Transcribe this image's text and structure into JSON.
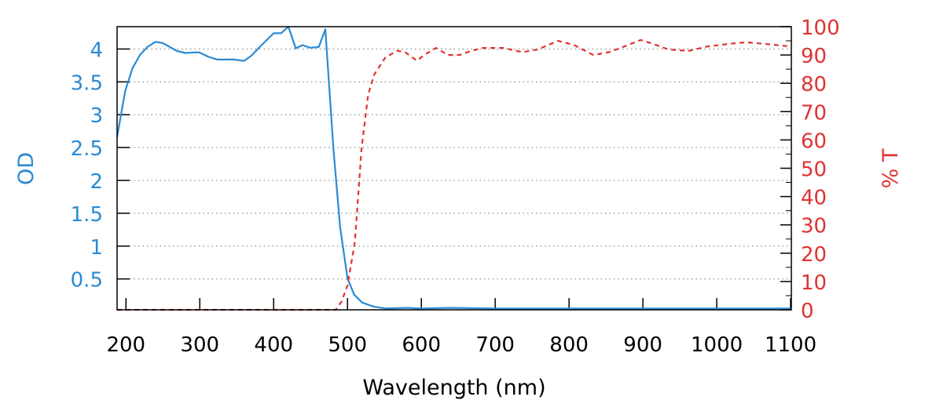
{
  "chart_data": {
    "type": "line",
    "xlabel": "Wavelength (nm)",
    "ylabel_left": "OD",
    "ylabel_right": "% T",
    "xlim": [
      188,
      1101
    ],
    "ylim_left": [
      0.03,
      4.34
    ],
    "ylim_right": [
      0,
      100
    ],
    "x_ticks": [
      200,
      300,
      400,
      500,
      600,
      700,
      800,
      900,
      1000,
      1100
    ],
    "y_left_ticks": [
      0.5,
      1,
      1.5,
      2,
      2.5,
      3,
      3.5,
      4
    ],
    "y_left_tick_labels": [
      "0.5",
      "1",
      "1.5",
      "2",
      "2.5",
      "3",
      "3.5",
      "4"
    ],
    "y_right_ticks": [
      0,
      10,
      20,
      30,
      40,
      50,
      60,
      70,
      80,
      90,
      100
    ],
    "grid": "horizontal dotted at left-axis ticks",
    "colors": {
      "od": "#2a8ad4",
      "t": "#e03232"
    },
    "series": [
      {
        "name": "OD",
        "axis": "left",
        "style": "solid",
        "x": [
          188,
          199,
          209,
          219,
          229,
          240,
          250,
          269,
          280,
          299,
          312,
          324,
          346,
          360,
          370,
          381,
          400,
          410,
          420,
          430,
          439,
          449,
          461,
          470,
          481,
          490,
          500,
          509,
          520,
          535,
          551,
          580,
          600,
          640,
          700,
          760,
          800,
          850,
          900,
          950,
          1000,
          1050,
          1101
        ],
        "y": [
          2.66,
          3.36,
          3.71,
          3.91,
          4.03,
          4.11,
          4.09,
          3.97,
          3.94,
          3.95,
          3.88,
          3.84,
          3.84,
          3.82,
          3.9,
          4.03,
          4.24,
          4.24,
          4.34,
          4.01,
          4.06,
          4.02,
          4.03,
          4.3,
          2.48,
          1.29,
          0.51,
          0.26,
          0.14,
          0.08,
          0.05,
          0.06,
          0.05,
          0.06,
          0.05,
          0.05,
          0.05,
          0.05,
          0.05,
          0.05,
          0.05,
          0.05,
          0.05
        ]
      },
      {
        "name": "% T",
        "axis": "right",
        "style": "dashed",
        "x": [
          188,
          300,
          400,
          484,
          492,
          500,
          510,
          519,
          528,
          536,
          551,
          567,
          578,
          594,
          604,
          620,
          636,
          652,
          668,
          684,
          711,
          737,
          758,
          785,
          806,
          833,
          854,
          870,
          897,
          913,
          934,
          961,
          987,
          1019,
          1040,
          1062,
          1101
        ],
        "y": [
          0,
          0,
          0,
          0,
          3,
          8.6,
          24,
          57,
          76,
          83,
          89,
          91.5,
          91,
          88,
          90,
          92.5,
          90,
          90,
          91.5,
          92.5,
          92.5,
          91,
          92,
          95,
          93.6,
          90,
          91,
          92.5,
          95.3,
          94,
          92,
          91.4,
          93,
          94,
          94.5,
          94,
          93
        ]
      }
    ]
  }
}
